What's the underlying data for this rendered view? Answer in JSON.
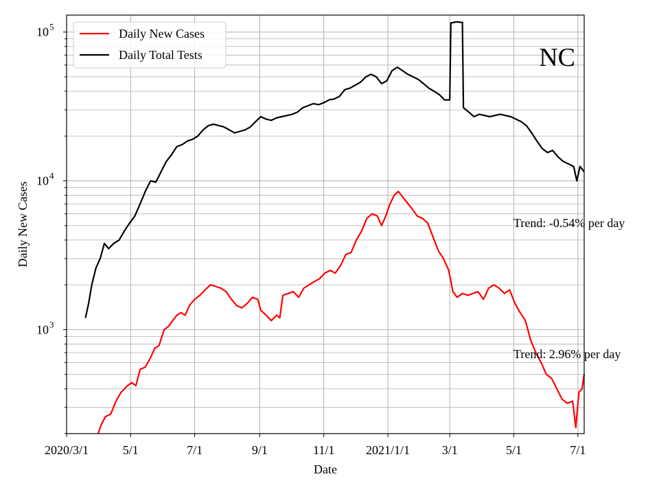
{
  "chart_data": {
    "type": "line",
    "title": "",
    "xlabel": "Date",
    "ylabel": "Daily New Cases",
    "x_scale": "date",
    "y_scale": "log",
    "xlim": [
      "2020-03-01",
      "2021-07-07"
    ],
    "ylim": [
      200,
      130000
    ],
    "x_ticks": [
      {
        "date": "2020-03-01",
        "label": "2020/3/1"
      },
      {
        "date": "2020-05-01",
        "label": "5/1"
      },
      {
        "date": "2020-07-01",
        "label": "7/1"
      },
      {
        "date": "2020-09-01",
        "label": "9/1"
      },
      {
        "date": "2020-11-01",
        "label": "11/1"
      },
      {
        "date": "2021-01-01",
        "label": "2021/1/1"
      },
      {
        "date": "2021-03-01",
        "label": "3/1"
      },
      {
        "date": "2021-05-01",
        "label": "5/1"
      },
      {
        "date": "2021-07-01",
        "label": "7/1"
      }
    ],
    "y_ticks": [
      {
        "value": 1000,
        "base": "10",
        "exp": "3"
      },
      {
        "value": 10000,
        "base": "10",
        "exp": "4"
      },
      {
        "value": 100000,
        "base": "10",
        "exp": "5"
      }
    ],
    "grid": true,
    "legend_position": "top-left",
    "annotation": "NC",
    "trend_labels": [
      "Trend: -0.54% per day",
      "Trend: 2.96% per day"
    ],
    "series": [
      {
        "name": "Daily New Cases",
        "color": "#ff0000",
        "points": [
          [
            "2020-03-31",
            200
          ],
          [
            "2020-04-03",
            230
          ],
          [
            "2020-04-07",
            260
          ],
          [
            "2020-04-12",
            270
          ],
          [
            "2020-04-17",
            330
          ],
          [
            "2020-04-22",
            380
          ],
          [
            "2020-04-28",
            420
          ],
          [
            "2020-05-02",
            440
          ],
          [
            "2020-05-06",
            420
          ],
          [
            "2020-05-10",
            540
          ],
          [
            "2020-05-15",
            560
          ],
          [
            "2020-05-20",
            650
          ],
          [
            "2020-05-24",
            750
          ],
          [
            "2020-05-28",
            780
          ],
          [
            "2020-06-02",
            1000
          ],
          [
            "2020-06-06",
            1050
          ],
          [
            "2020-06-10",
            1150
          ],
          [
            "2020-06-14",
            1250
          ],
          [
            "2020-06-18",
            1300
          ],
          [
            "2020-06-22",
            1250
          ],
          [
            "2020-06-26",
            1450
          ],
          [
            "2020-07-01",
            1600
          ],
          [
            "2020-07-06",
            1700
          ],
          [
            "2020-07-11",
            1850
          ],
          [
            "2020-07-16",
            2000
          ],
          [
            "2020-07-21",
            1950
          ],
          [
            "2020-07-26",
            1900
          ],
          [
            "2020-07-31",
            1800
          ],
          [
            "2020-08-05",
            1600
          ],
          [
            "2020-08-10",
            1450
          ],
          [
            "2020-08-15",
            1400
          ],
          [
            "2020-08-20",
            1500
          ],
          [
            "2020-08-25",
            1650
          ],
          [
            "2020-08-30",
            1600
          ],
          [
            "2020-09-02",
            1350
          ],
          [
            "2020-09-07",
            1250
          ],
          [
            "2020-09-12",
            1150
          ],
          [
            "2020-09-17",
            1250
          ],
          [
            "2020-09-20",
            1200
          ],
          [
            "2020-09-23",
            1700
          ],
          [
            "2020-09-28",
            1750
          ],
          [
            "2020-10-03",
            1800
          ],
          [
            "2020-10-08",
            1650
          ],
          [
            "2020-10-13",
            1900
          ],
          [
            "2020-10-18",
            2000
          ],
          [
            "2020-10-23",
            2100
          ],
          [
            "2020-10-28",
            2200
          ],
          [
            "2020-11-02",
            2400
          ],
          [
            "2020-11-07",
            2500
          ],
          [
            "2020-11-12",
            2400
          ],
          [
            "2020-11-17",
            2700
          ],
          [
            "2020-11-22",
            3200
          ],
          [
            "2020-11-27",
            3300
          ],
          [
            "2020-12-02",
            4000
          ],
          [
            "2020-12-07",
            4600
          ],
          [
            "2020-12-12",
            5600
          ],
          [
            "2020-12-17",
            6000
          ],
          [
            "2020-12-22",
            5800
          ],
          [
            "2020-12-26",
            5000
          ],
          [
            "2020-12-30",
            5800
          ],
          [
            "2021-01-03",
            7000
          ],
          [
            "2021-01-07",
            8000
          ],
          [
            "2021-01-11",
            8500
          ],
          [
            "2021-01-15",
            7800
          ],
          [
            "2021-01-19",
            7200
          ],
          [
            "2021-01-24",
            6500
          ],
          [
            "2021-01-29",
            5800
          ],
          [
            "2021-02-03",
            5600
          ],
          [
            "2021-02-08",
            5200
          ],
          [
            "2021-02-13",
            4200
          ],
          [
            "2021-02-18",
            3400
          ],
          [
            "2021-02-23",
            3000
          ],
          [
            "2021-02-28",
            2500
          ],
          [
            "2021-03-04",
            1800
          ],
          [
            "2021-03-08",
            1650
          ],
          [
            "2021-03-13",
            1750
          ],
          [
            "2021-03-18",
            1700
          ],
          [
            "2021-03-23",
            1750
          ],
          [
            "2021-03-28",
            1800
          ],
          [
            "2021-04-02",
            1600
          ],
          [
            "2021-04-07",
            1900
          ],
          [
            "2021-04-12",
            2000
          ],
          [
            "2021-04-17",
            1900
          ],
          [
            "2021-04-22",
            1750
          ],
          [
            "2021-04-27",
            1850
          ],
          [
            "2021-05-02",
            1500
          ],
          [
            "2021-05-07",
            1300
          ],
          [
            "2021-05-12",
            1150
          ],
          [
            "2021-05-17",
            850
          ],
          [
            "2021-05-22",
            700
          ],
          [
            "2021-05-27",
            600
          ],
          [
            "2021-06-01",
            500
          ],
          [
            "2021-06-06",
            470
          ],
          [
            "2021-06-11",
            400
          ],
          [
            "2021-06-16",
            340
          ],
          [
            "2021-06-21",
            320
          ],
          [
            "2021-06-26",
            330
          ],
          [
            "2021-06-29",
            220
          ],
          [
            "2021-07-02",
            380
          ],
          [
            "2021-07-05",
            400
          ],
          [
            "2021-07-07",
            500
          ]
        ]
      },
      {
        "name": "Daily Total Tests",
        "color": "#000000",
        "points": [
          [
            "2020-03-19",
            1200
          ],
          [
            "2020-03-22",
            1500
          ],
          [
            "2020-03-25",
            2000
          ],
          [
            "2020-03-29",
            2600
          ],
          [
            "2020-04-02",
            3000
          ],
          [
            "2020-04-06",
            3800
          ],
          [
            "2020-04-10",
            3500
          ],
          [
            "2020-04-15",
            3800
          ],
          [
            "2020-04-20",
            4000
          ],
          [
            "2020-04-25",
            4600
          ],
          [
            "2020-04-30",
            5200
          ],
          [
            "2020-05-05",
            5800
          ],
          [
            "2020-05-10",
            7000
          ],
          [
            "2020-05-15",
            8500
          ],
          [
            "2020-05-20",
            10000
          ],
          [
            "2020-05-25",
            9800
          ],
          [
            "2020-05-30",
            11500
          ],
          [
            "2020-06-04",
            13500
          ],
          [
            "2020-06-09",
            15000
          ],
          [
            "2020-06-14",
            17000
          ],
          [
            "2020-06-19",
            17500
          ],
          [
            "2020-06-24",
            18500
          ],
          [
            "2020-06-29",
            19000
          ],
          [
            "2020-07-04",
            20000
          ],
          [
            "2020-07-09",
            22000
          ],
          [
            "2020-07-14",
            23500
          ],
          [
            "2020-07-19",
            24000
          ],
          [
            "2020-07-24",
            23500
          ],
          [
            "2020-07-29",
            23000
          ],
          [
            "2020-08-03",
            22000
          ],
          [
            "2020-08-08",
            21000
          ],
          [
            "2020-08-13",
            21500
          ],
          [
            "2020-08-18",
            22000
          ],
          [
            "2020-08-23",
            23000
          ],
          [
            "2020-08-28",
            25000
          ],
          [
            "2020-09-02",
            27000
          ],
          [
            "2020-09-07",
            26000
          ],
          [
            "2020-09-12",
            25500
          ],
          [
            "2020-09-17",
            26500
          ],
          [
            "2020-09-22",
            27000
          ],
          [
            "2020-09-27",
            27500
          ],
          [
            "2020-10-02",
            28000
          ],
          [
            "2020-10-07",
            29000
          ],
          [
            "2020-10-12",
            31000
          ],
          [
            "2020-10-17",
            32000
          ],
          [
            "2020-10-22",
            33000
          ],
          [
            "2020-10-27",
            32500
          ],
          [
            "2020-11-01",
            33500
          ],
          [
            "2020-11-06",
            35000
          ],
          [
            "2020-11-11",
            35500
          ],
          [
            "2020-11-16",
            37000
          ],
          [
            "2020-11-21",
            41000
          ],
          [
            "2020-11-26",
            42000
          ],
          [
            "2020-12-01",
            44000
          ],
          [
            "2020-12-06",
            46000
          ],
          [
            "2020-12-11",
            50000
          ],
          [
            "2020-12-16",
            52000
          ],
          [
            "2020-12-21",
            50000
          ],
          [
            "2020-12-26",
            45000
          ],
          [
            "2020-12-31",
            47000
          ],
          [
            "2021-01-05",
            55000
          ],
          [
            "2021-01-10",
            58000
          ],
          [
            "2021-01-15",
            55000
          ],
          [
            "2021-01-20",
            52000
          ],
          [
            "2021-01-25",
            50000
          ],
          [
            "2021-01-30",
            48000
          ],
          [
            "2021-02-04",
            45000
          ],
          [
            "2021-02-09",
            42000
          ],
          [
            "2021-02-14",
            40000
          ],
          [
            "2021-02-19",
            38000
          ],
          [
            "2021-02-24",
            35000
          ],
          [
            "2021-03-01",
            35000
          ],
          [
            "2021-03-02",
            115000
          ],
          [
            "2021-03-07",
            117000
          ],
          [
            "2021-03-13",
            116000
          ],
          [
            "2021-03-14",
            31000
          ],
          [
            "2021-03-19",
            29000
          ],
          [
            "2021-03-24",
            27000
          ],
          [
            "2021-03-29",
            28000
          ],
          [
            "2021-04-03",
            27500
          ],
          [
            "2021-04-08",
            27000
          ],
          [
            "2021-04-13",
            27500
          ],
          [
            "2021-04-18",
            28000
          ],
          [
            "2021-04-23",
            27500
          ],
          [
            "2021-04-28",
            27000
          ],
          [
            "2021-05-03",
            26000
          ],
          [
            "2021-05-08",
            25000
          ],
          [
            "2021-05-13",
            23500
          ],
          [
            "2021-05-18",
            21000
          ],
          [
            "2021-05-23",
            18500
          ],
          [
            "2021-05-28",
            16500
          ],
          [
            "2021-06-02",
            15500
          ],
          [
            "2021-06-07",
            16000
          ],
          [
            "2021-06-12",
            14500
          ],
          [
            "2021-06-17",
            13500
          ],
          [
            "2021-06-22",
            13000
          ],
          [
            "2021-06-27",
            12500
          ],
          [
            "2021-06-30",
            10000
          ],
          [
            "2021-07-03",
            12500
          ],
          [
            "2021-07-07",
            11500
          ]
        ]
      }
    ]
  }
}
